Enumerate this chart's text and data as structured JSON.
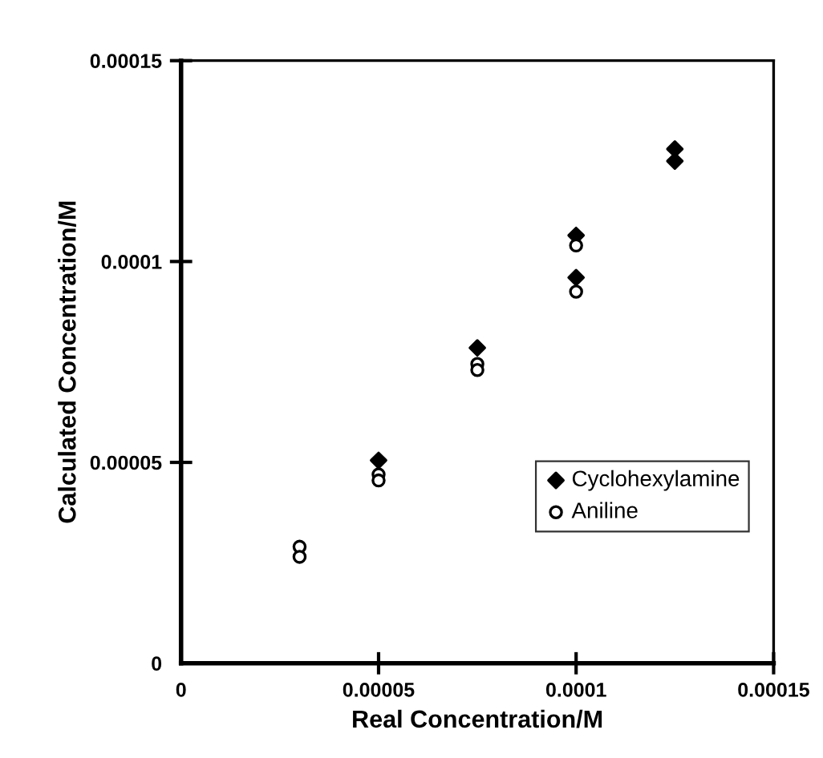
{
  "chart_data": {
    "type": "scatter",
    "xlabel": "Real Concentration/M",
    "ylabel": "Calculated Concentration/M",
    "xlim": [
      0,
      0.00015
    ],
    "ylim": [
      0,
      0.00015
    ],
    "xticks": [
      0,
      {
        "value": 5e-05,
        "label": "0.00005"
      },
      {
        "value": 0.0001,
        "label": "0.0001"
      },
      {
        "value": 0.00015,
        "label": "0.00015"
      }
    ],
    "yticks": [
      0,
      {
        "value": 5e-05,
        "label": "0.00005"
      },
      {
        "value": 0.0001,
        "label": "0.0001"
      },
      {
        "value": 0.00015,
        "label": "0.00015"
      }
    ],
    "legend": "bottom right",
    "grid": false,
    "series": [
      {
        "name": "Cyclohexylamine",
        "color": "#000000",
        "marker": "diamond",
        "x": [
          5e-05,
          7.5e-05,
          0.0001,
          0.0001,
          0.000125,
          0.000125
        ],
        "values": [
          5.05e-05,
          7.85e-05,
          0.0001065,
          9.6e-05,
          0.000128,
          0.000125
        ]
      },
      {
        "name": "Aniline",
        "color": "#000000",
        "marker": "circle",
        "x": [
          3e-05,
          3e-05,
          5e-05,
          5e-05,
          7.5e-05,
          7.5e-05,
          0.0001,
          0.0001
        ],
        "values": [
          2.9e-05,
          2.65e-05,
          4.7e-05,
          4.55e-05,
          7.45e-05,
          7.3e-05,
          0.000104,
          9.25e-05
        ]
      }
    ]
  }
}
